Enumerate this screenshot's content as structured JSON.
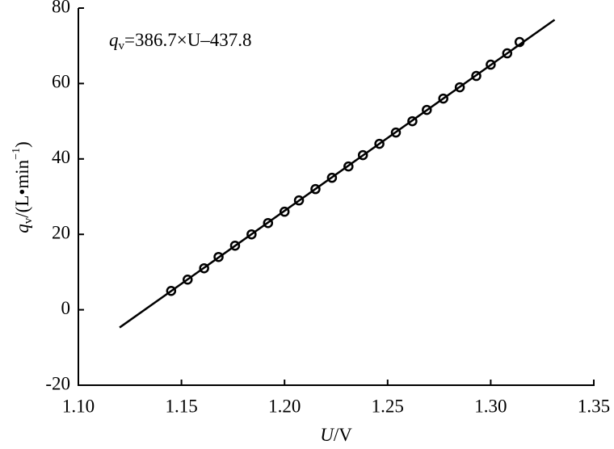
{
  "chart_data": {
    "type": "scatter",
    "x": [
      1.145,
      1.153,
      1.161,
      1.168,
      1.176,
      1.184,
      1.192,
      1.2,
      1.207,
      1.215,
      1.223,
      1.231,
      1.238,
      1.246,
      1.254,
      1.262,
      1.269,
      1.277,
      1.285,
      1.293,
      1.3,
      1.308,
      1.314
    ],
    "values": [
      5,
      8,
      11,
      14,
      17,
      20,
      23,
      26,
      29,
      32,
      35,
      38,
      41,
      44,
      47,
      50,
      53,
      56,
      59,
      62,
      65,
      68,
      71
    ],
    "color": "#000000",
    "fit_line": {
      "x": [
        1.12,
        1.331
      ],
      "values": [
        -4.7,
        76.9
      ]
    },
    "annotation": {
      "symbol": "q",
      "subscript": "v",
      "text": "=386.7×U–437.8"
    },
    "x_label": {
      "symbol": "U",
      "unit": "/V"
    },
    "y_label": {
      "symbol": "q",
      "subscript": "v",
      "unit": "/(L•min",
      "exponent": "−1",
      "close": ")"
    },
    "xlim": [
      1.1,
      1.35
    ],
    "xticks": [
      {
        "value": 1.1,
        "label": "1.10"
      },
      1.15,
      {
        "value": 1.2,
        "label": "1.20"
      },
      1.25,
      {
        "value": 1.3,
        "label": "1.30"
      },
      1.35
    ],
    "ylim": [
      -20,
      80
    ],
    "yticks": [
      -20,
      0,
      20,
      40,
      60,
      80
    ]
  }
}
